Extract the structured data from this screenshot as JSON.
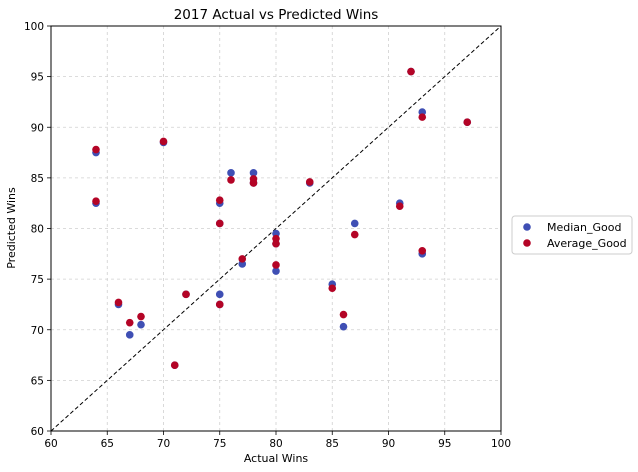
{
  "chart_data": {
    "type": "scatter",
    "title": "2017 Actual vs Predicted Wins",
    "xlabel": "Actual Wins",
    "ylabel": "Predicted Wins",
    "xlim": [
      60,
      100
    ],
    "ylim": [
      60,
      100
    ],
    "xticks": [
      60,
      65,
      70,
      75,
      80,
      85,
      90,
      95,
      100
    ],
    "yticks": [
      60,
      65,
      70,
      75,
      80,
      85,
      90,
      95,
      100
    ],
    "grid": true,
    "diagonal_reference": true,
    "legend_position": "outside right",
    "series": [
      {
        "name": "Median_Good",
        "color": "#3f4fb4",
        "points": [
          [
            64,
            87.5
          ],
          [
            64,
            82.5
          ],
          [
            66,
            72.5
          ],
          [
            67,
            69.5
          ],
          [
            68,
            70.5
          ],
          [
            70,
            88.5
          ],
          [
            71,
            66.5
          ],
          [
            72,
            73.5
          ],
          [
            75,
            82.5
          ],
          [
            75,
            80.5
          ],
          [
            75,
            73.5
          ],
          [
            75,
            72.5
          ],
          [
            76,
            85.5
          ],
          [
            77,
            76.5
          ],
          [
            78,
            85.5
          ],
          [
            78,
            84.5
          ],
          [
            80,
            79.5
          ],
          [
            80,
            78.5
          ],
          [
            80,
            75.8
          ],
          [
            83,
            84.5
          ],
          [
            85,
            74.5
          ],
          [
            86,
            70.3
          ],
          [
            87,
            80.5
          ],
          [
            91,
            82.5
          ],
          [
            92,
            95.5
          ],
          [
            93,
            91.5
          ],
          [
            93,
            77.5
          ],
          [
            97,
            90.5
          ]
        ]
      },
      {
        "name": "Average_Good",
        "color": "#b40426",
        "points": [
          [
            64,
            87.8
          ],
          [
            64,
            82.7
          ],
          [
            66,
            72.7
          ],
          [
            67,
            70.7
          ],
          [
            68,
            71.3
          ],
          [
            70,
            88.6
          ],
          [
            71,
            66.5
          ],
          [
            72,
            73.5
          ],
          [
            75,
            82.8
          ],
          [
            75,
            80.5
          ],
          [
            75,
            72.5
          ],
          [
            76,
            84.8
          ],
          [
            77,
            77.0
          ],
          [
            78,
            84.9
          ],
          [
            78,
            84.5
          ],
          [
            80,
            79.0
          ],
          [
            80,
            78.5
          ],
          [
            80,
            76.4
          ],
          [
            83,
            84.6
          ],
          [
            85,
            74.1
          ],
          [
            86,
            71.5
          ],
          [
            87,
            79.4
          ],
          [
            91,
            82.2
          ],
          [
            92,
            95.5
          ],
          [
            93,
            91.0
          ],
          [
            93,
            77.8
          ],
          [
            97,
            90.5
          ]
        ]
      }
    ]
  }
}
